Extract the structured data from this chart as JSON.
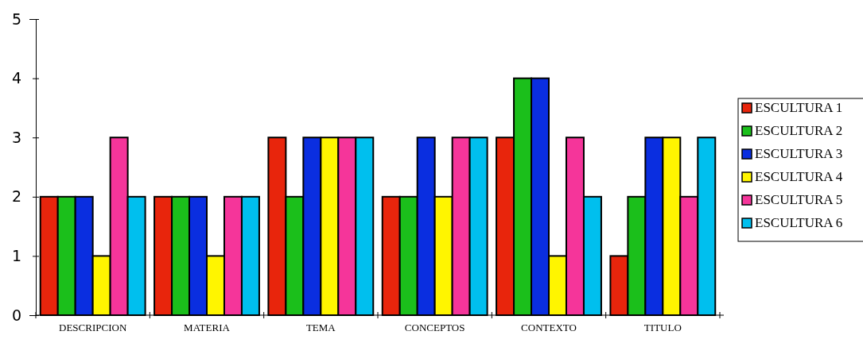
{
  "chart_data": {
    "type": "bar",
    "categories": [
      "DESCRIPCION",
      "MATERIA",
      "TEMA",
      "CONCEPTOS",
      "CONTEXTO",
      "TITULO"
    ],
    "series": [
      {
        "name": "ESCULTURA 1",
        "color": "#e8250c",
        "values": [
          2,
          2,
          3,
          2,
          3,
          1
        ]
      },
      {
        "name": "ESCULTURA 2",
        "color": "#1bbf1b",
        "values": [
          2,
          2,
          2,
          2,
          4,
          2
        ]
      },
      {
        "name": "ESCULTURA 3",
        "color": "#0a2ee0",
        "values": [
          2,
          2,
          3,
          3,
          4,
          3
        ]
      },
      {
        "name": "ESCULTURA 4",
        "color": "#fff500",
        "values": [
          1,
          1,
          3,
          2,
          1,
          3
        ]
      },
      {
        "name": "ESCULTURA 5",
        "color": "#f5359a",
        "values": [
          3,
          2,
          3,
          3,
          3,
          2
        ]
      },
      {
        "name": "ESCULTURA 6",
        "color": "#00bfee",
        "values": [
          2,
          2,
          3,
          3,
          2,
          3
        ]
      }
    ],
    "ylim": [
      0,
      5
    ],
    "yticks": [
      0,
      1,
      2,
      3,
      4,
      5
    ],
    "grid": false,
    "legend": "right"
  }
}
